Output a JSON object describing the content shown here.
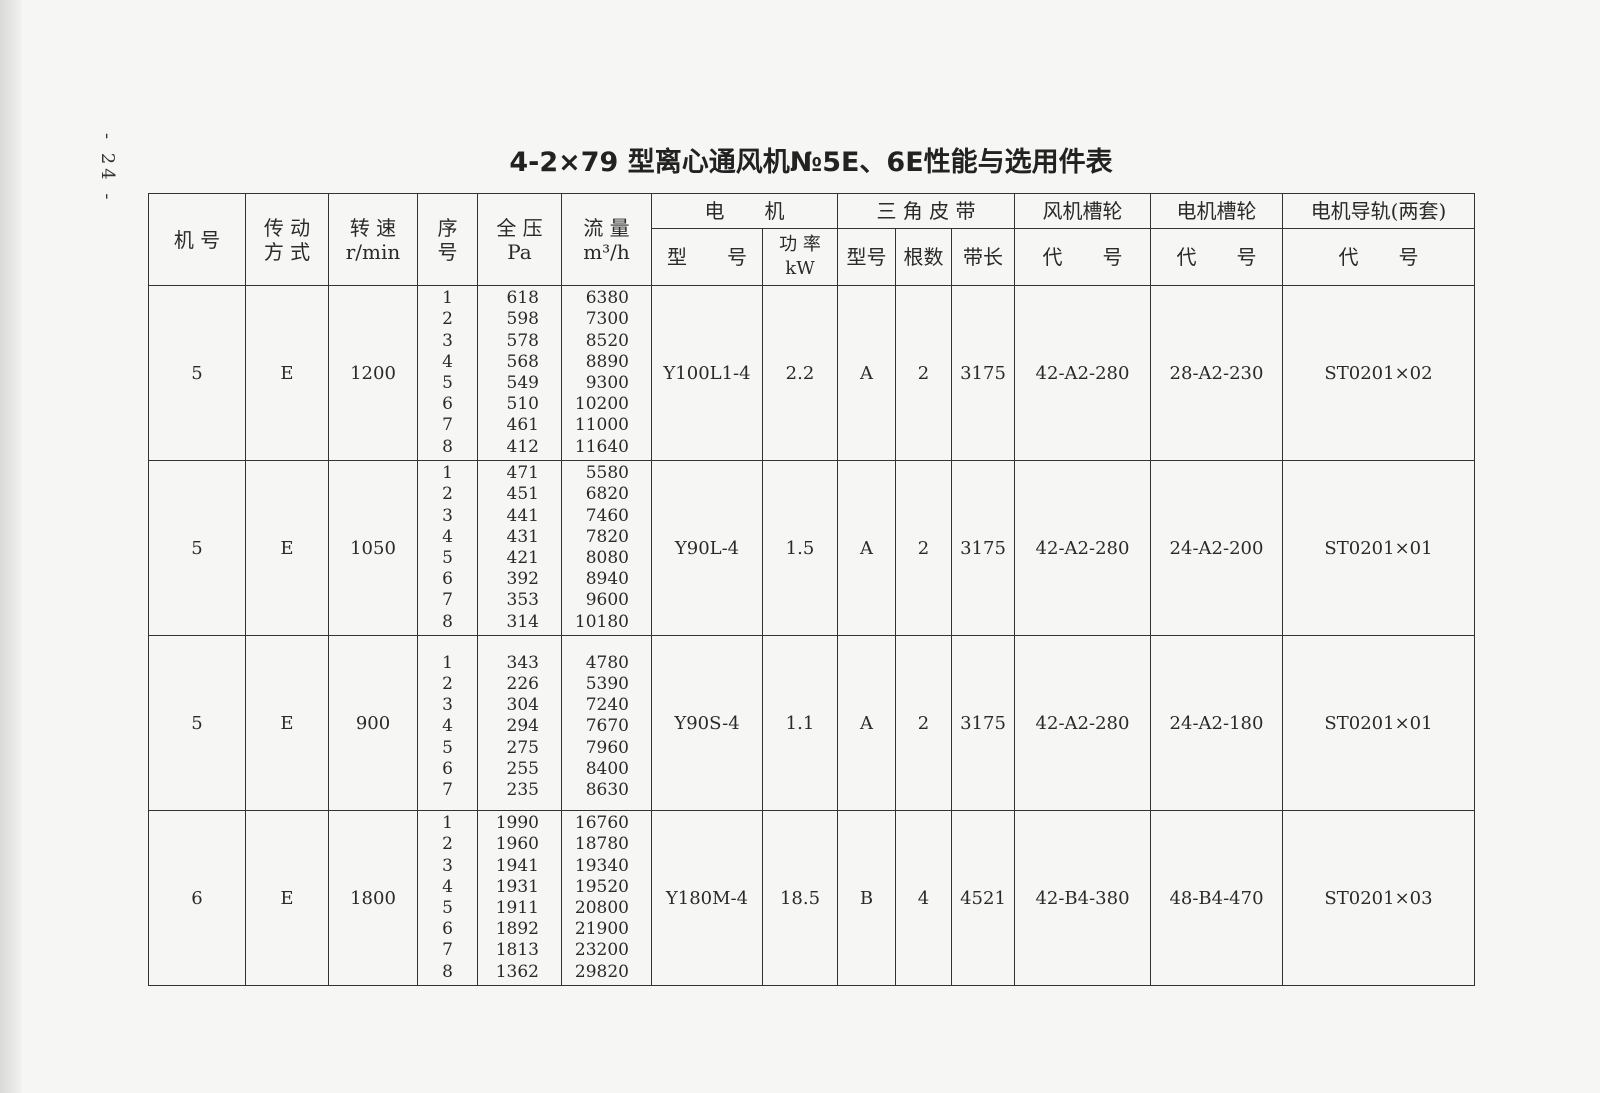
{
  "page_number": "- 24 -",
  "title": "4-2×79 型离心通风机№5E、6E性能与选用件表",
  "headers": {
    "machine_no": "机 号",
    "drive": "传 动\n方 式",
    "speed": "转 速\nr/min",
    "seq": "序\n号",
    "pressure": "全 压\nPa",
    "flow": "流 量\nm³/h",
    "motor": "电　　机",
    "motor_model": "型　　号",
    "motor_power": "功 率\nkW",
    "belt": "三 角 皮 带",
    "belt_type": "型号",
    "belt_count": "根数",
    "belt_length": "带长",
    "fan_pulley": "风机槽轮",
    "fan_pulley_code": "代　　号",
    "motor_pulley": "电机槽轮",
    "motor_pulley_code": "代　　号",
    "rail": "电机导轨(两套)",
    "rail_code": "代　　号"
  },
  "groups": [
    {
      "machine_no": "5",
      "drive": "E",
      "speed": "1200",
      "seq": [
        "1",
        "2",
        "3",
        "4",
        "5",
        "6",
        "7",
        "8"
      ],
      "pressure": [
        "618",
        "598",
        "578",
        "568",
        "549",
        "510",
        "461",
        "412"
      ],
      "flow": [
        "6380",
        "7300",
        "8520",
        "8890",
        "9300",
        "10200",
        "11000",
        "11640"
      ],
      "motor_model": "Y100L1-4",
      "motor_power": "2.2",
      "belt_type": "A",
      "belt_count": "2",
      "belt_length": "3175",
      "fan_pulley": "42-A2-280",
      "motor_pulley": "28-A2-230",
      "rail": "ST0201×02"
    },
    {
      "machine_no": "5",
      "drive": "E",
      "speed": "1050",
      "seq": [
        "1",
        "2",
        "3",
        "4",
        "5",
        "6",
        "7",
        "8"
      ],
      "pressure": [
        "471",
        "451",
        "441",
        "431",
        "421",
        "392",
        "353",
        "314"
      ],
      "flow": [
        "5580",
        "6820",
        "7460",
        "7820",
        "8080",
        "8940",
        "9600",
        "10180"
      ],
      "motor_model": "Y90L-4",
      "motor_power": "1.5",
      "belt_type": "A",
      "belt_count": "2",
      "belt_length": "3175",
      "fan_pulley": "42-A2-280",
      "motor_pulley": "24-A2-200",
      "rail": "ST0201×01"
    },
    {
      "machine_no": "5",
      "drive": "E",
      "speed": "900",
      "seq": [
        "1",
        "2",
        "3",
        "4",
        "5",
        "6",
        "7"
      ],
      "pressure": [
        "343",
        "226",
        "304",
        "294",
        "275",
        "255",
        "235"
      ],
      "flow": [
        "4780",
        "5390",
        "7240",
        "7670",
        "7960",
        "8400",
        "8630"
      ],
      "motor_model": "Y90S-4",
      "motor_power": "1.1",
      "belt_type": "A",
      "belt_count": "2",
      "belt_length": "3175",
      "fan_pulley": "42-A2-280",
      "motor_pulley": "24-A2-180",
      "rail": "ST0201×01"
    },
    {
      "machine_no": "6",
      "drive": "E",
      "speed": "1800",
      "seq": [
        "1",
        "2",
        "3",
        "4",
        "5",
        "6",
        "7",
        "8"
      ],
      "pressure": [
        "1990",
        "1960",
        "1941",
        "1931",
        "1911",
        "1892",
        "1813",
        "1362"
      ],
      "flow": [
        "16760",
        "18780",
        "19340",
        "19520",
        "20800",
        "21900",
        "23200",
        "29820"
      ],
      "motor_model": "Y180M-4",
      "motor_power": "18.5",
      "belt_type": "B",
      "belt_count": "4",
      "belt_length": "4521",
      "fan_pulley": "42-B4-380",
      "motor_pulley": "48-B4-470",
      "rail": "ST0201×03"
    }
  ]
}
